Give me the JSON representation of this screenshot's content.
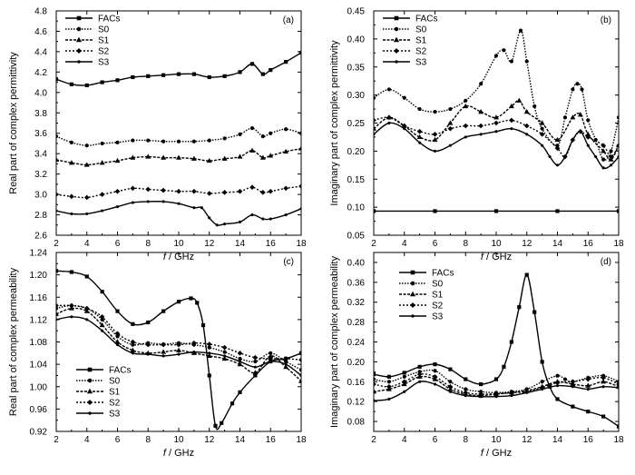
{
  "chart_data": [
    {
      "type": "line",
      "panel": "(a)",
      "xlabel_italic": "f",
      "xlabel_rest": " / GHz",
      "ylabel": "Real part of complex permittivity",
      "xlim": [
        2,
        18
      ],
      "ylim": [
        2.6,
        4.8
      ],
      "xticks": [
        2,
        4,
        6,
        8,
        10,
        12,
        14,
        16,
        18
      ],
      "yticks": [
        "2.6",
        "2.8",
        "3.0",
        "3.2",
        "3.4",
        "3.6",
        "3.8",
        "4.0",
        "4.2",
        "4.4",
        "4.6",
        "4.8"
      ],
      "legend": [
        "FACs",
        "S0",
        "S1",
        "S2",
        "S3"
      ],
      "legend_position": "top-left",
      "series": [
        {
          "name": "FACs",
          "x": [
            2,
            3,
            4,
            5,
            6,
            7,
            8,
            9,
            10,
            11,
            12,
            13,
            14,
            14.8,
            15.5,
            16,
            17,
            18
          ],
          "y": [
            4.13,
            4.08,
            4.07,
            4.1,
            4.12,
            4.15,
            4.16,
            4.17,
            4.18,
            4.18,
            4.15,
            4.16,
            4.2,
            4.28,
            4.18,
            4.22,
            4.3,
            4.39
          ]
        },
        {
          "name": "S0",
          "x": [
            2,
            3,
            4,
            5,
            6,
            7,
            8,
            9,
            10,
            11,
            12,
            13,
            14,
            14.8,
            15.5,
            16,
            17,
            18
          ],
          "y": [
            3.57,
            3.51,
            3.48,
            3.5,
            3.51,
            3.53,
            3.53,
            3.52,
            3.52,
            3.52,
            3.53,
            3.55,
            3.59,
            3.65,
            3.57,
            3.6,
            3.64,
            3.6
          ]
        },
        {
          "name": "S1",
          "x": [
            2,
            3,
            4,
            5,
            6,
            7,
            8,
            9,
            10,
            11,
            12,
            13,
            14,
            14.8,
            15.5,
            16,
            17,
            18
          ],
          "y": [
            3.34,
            3.31,
            3.29,
            3.31,
            3.33,
            3.36,
            3.37,
            3.36,
            3.36,
            3.35,
            3.33,
            3.35,
            3.37,
            3.43,
            3.36,
            3.38,
            3.42,
            3.45
          ]
        },
        {
          "name": "S2",
          "x": [
            2,
            3,
            4,
            5,
            6,
            7,
            8,
            9,
            10,
            11,
            12,
            13,
            14,
            14.8,
            15.5,
            16,
            17,
            18
          ],
          "y": [
            3.0,
            2.98,
            2.97,
            3.0,
            3.03,
            3.06,
            3.05,
            3.04,
            3.03,
            3.03,
            3.01,
            3.02,
            3.03,
            3.07,
            3.02,
            3.03,
            3.06,
            3.08
          ]
        },
        {
          "name": "S3",
          "x": [
            2,
            3,
            4,
            5,
            6,
            7,
            8,
            9,
            10,
            11,
            11.5,
            12,
            12.5,
            13,
            14,
            14.8,
            15.5,
            16,
            17,
            18
          ],
          "y": [
            2.84,
            2.81,
            2.81,
            2.84,
            2.88,
            2.92,
            2.93,
            2.93,
            2.91,
            2.87,
            2.87,
            2.77,
            2.7,
            2.71,
            2.73,
            2.8,
            2.76,
            2.76,
            2.8,
            2.86
          ]
        }
      ]
    },
    {
      "type": "line",
      "panel": "(b)",
      "xlabel_italic": "f",
      "xlabel_rest": " / GHz",
      "ylabel": "Imaginary part of complex permittivity",
      "xlim": [
        2,
        18
      ],
      "ylim": [
        0.05,
        0.45
      ],
      "xticks": [
        2,
        4,
        6,
        8,
        10,
        12,
        14,
        16,
        18
      ],
      "yticks": [
        "0.05",
        "0.10",
        "0.15",
        "0.20",
        "0.25",
        "0.30",
        "0.35",
        "0.40",
        "0.45"
      ],
      "legend": [
        "FACs",
        "S0",
        "S1",
        "S2",
        "S3"
      ],
      "legend_position": "top-left",
      "series": [
        {
          "name": "FACs",
          "x": [
            2,
            6,
            10,
            14,
            18
          ],
          "y": [
            0.093,
            0.093,
            0.093,
            0.093,
            0.093
          ]
        },
        {
          "name": "S0",
          "x": [
            2,
            3,
            4,
            5,
            6,
            7,
            8,
            9,
            10,
            10.5,
            11,
            11.6,
            12,
            12.5,
            13,
            14,
            14.5,
            15,
            15.3,
            15.6,
            16,
            16.5,
            17,
            17.5,
            18
          ],
          "y": [
            0.295,
            0.31,
            0.295,
            0.275,
            0.27,
            0.275,
            0.29,
            0.32,
            0.37,
            0.38,
            0.36,
            0.415,
            0.36,
            0.28,
            0.24,
            0.21,
            0.26,
            0.31,
            0.32,
            0.31,
            0.255,
            0.22,
            0.185,
            0.2,
            0.26
          ]
        },
        {
          "name": "S1",
          "x": [
            2,
            3,
            4,
            5,
            6,
            7,
            8,
            9,
            10,
            11,
            11.5,
            12,
            13,
            14,
            15,
            15.5,
            16,
            17,
            17.5,
            18
          ],
          "y": [
            0.24,
            0.26,
            0.245,
            0.225,
            0.22,
            0.25,
            0.28,
            0.27,
            0.26,
            0.28,
            0.29,
            0.27,
            0.25,
            0.22,
            0.26,
            0.265,
            0.23,
            0.2,
            0.185,
            0.21
          ]
        },
        {
          "name": "S2",
          "x": [
            2,
            3,
            4,
            5,
            6,
            7,
            8,
            9,
            10,
            11,
            12,
            13,
            14,
            14.5,
            15,
            15.5,
            16,
            17,
            17.5,
            18
          ],
          "y": [
            0.255,
            0.26,
            0.245,
            0.235,
            0.23,
            0.24,
            0.245,
            0.245,
            0.25,
            0.255,
            0.245,
            0.23,
            0.205,
            0.19,
            0.22,
            0.235,
            0.225,
            0.21,
            0.19,
            0.21
          ]
        },
        {
          "name": "S3",
          "x": [
            2,
            3,
            4,
            5,
            6,
            7,
            8,
            9,
            10,
            11,
            12,
            13,
            13.5,
            14,
            14.5,
            15,
            15.5,
            16,
            16.5,
            17,
            17.5,
            18
          ],
          "y": [
            0.23,
            0.25,
            0.24,
            0.215,
            0.2,
            0.21,
            0.225,
            0.23,
            0.235,
            0.24,
            0.23,
            0.21,
            0.19,
            0.175,
            0.19,
            0.22,
            0.235,
            0.21,
            0.19,
            0.17,
            0.175,
            0.19
          ]
        }
      ]
    },
    {
      "type": "line",
      "panel": "(c)",
      "xlabel_italic": "f",
      "xlabel_rest": " / GHz",
      "ylabel": "Real part of complex permeability",
      "xlim": [
        2,
        18
      ],
      "ylim": [
        0.92,
        1.24
      ],
      "xticks": [
        2,
        4,
        6,
        8,
        10,
        12,
        14,
        16,
        18
      ],
      "yticks": [
        "0.92",
        "0.96",
        "1.00",
        "1.04",
        "1.08",
        "1.12",
        "1.16",
        "1.20",
        "1.24"
      ],
      "legend": [
        "FACs",
        "S0",
        "S1",
        "S2",
        "S3"
      ],
      "legend_position": "bottom-left",
      "series": [
        {
          "name": "FACs",
          "x": [
            2,
            3,
            4,
            5,
            6,
            7,
            8,
            9,
            10,
            10.8,
            11.2,
            11.6,
            12,
            12.4,
            12.8,
            13.5,
            14,
            15,
            16,
            17,
            18
          ],
          "y": [
            1.207,
            1.205,
            1.197,
            1.17,
            1.135,
            1.112,
            1.115,
            1.135,
            1.152,
            1.158,
            1.15,
            1.11,
            1.02,
            0.93,
            0.935,
            0.97,
            0.99,
            1.02,
            1.045,
            1.05,
            1.06
          ]
        },
        {
          "name": "S0",
          "x": [
            2,
            3,
            4,
            5,
            6,
            7,
            8,
            9,
            10,
            11,
            12,
            13,
            14,
            15,
            16,
            17,
            18
          ],
          "y": [
            1.14,
            1.145,
            1.14,
            1.12,
            1.09,
            1.075,
            1.078,
            1.076,
            1.078,
            1.075,
            1.07,
            1.062,
            1.05,
            1.045,
            1.06,
            1.045,
            1.03
          ]
        },
        {
          "name": "S1",
          "x": [
            2,
            3,
            4,
            5,
            6,
            7,
            8,
            9,
            10,
            11,
            12,
            13,
            14,
            15,
            16,
            17,
            18
          ],
          "y": [
            1.13,
            1.14,
            1.135,
            1.11,
            1.08,
            1.065,
            1.06,
            1.062,
            1.065,
            1.06,
            1.055,
            1.05,
            1.04,
            1.025,
            1.055,
            1.035,
            1.01
          ]
        },
        {
          "name": "S2",
          "x": [
            2,
            3,
            4,
            5,
            6,
            7,
            8,
            9,
            10,
            11,
            12,
            13,
            14,
            15,
            16,
            17,
            18
          ],
          "y": [
            1.145,
            1.145,
            1.14,
            1.125,
            1.095,
            1.08,
            1.075,
            1.075,
            1.075,
            1.078,
            1.076,
            1.07,
            1.06,
            1.052,
            1.05,
            1.05,
            1.048
          ]
        },
        {
          "name": "S3",
          "x": [
            2,
            3,
            4,
            5,
            6,
            7,
            8,
            9,
            10,
            11,
            12,
            13,
            14,
            15,
            16,
            17,
            18
          ],
          "y": [
            1.12,
            1.125,
            1.12,
            1.1,
            1.075,
            1.06,
            1.058,
            1.055,
            1.058,
            1.062,
            1.06,
            1.055,
            1.045,
            1.035,
            1.045,
            1.04,
            1.02
          ]
        }
      ]
    },
    {
      "type": "line",
      "panel": "(d)",
      "xlabel_italic": "f",
      "xlabel_rest": " / GHz",
      "ylabel": "Imaginary part of complex permeability",
      "xlim": [
        2,
        18
      ],
      "ylim": [
        0.06,
        0.42
      ],
      "xticks": [
        2,
        4,
        6,
        8,
        10,
        12,
        14,
        16,
        18
      ],
      "yticks": [
        "0.08",
        "0.12",
        "0.16",
        "0.20",
        "0.24",
        "0.28",
        "0.32",
        "0.36",
        "0.40"
      ],
      "legend": [
        "FACs",
        "S0",
        "S1",
        "S2",
        "S3"
      ],
      "legend_position": "top-left",
      "series": [
        {
          "name": "FACs",
          "x": [
            2,
            3,
            4,
            5,
            6,
            7,
            8,
            9,
            10,
            10.5,
            11,
            11.5,
            12,
            12.5,
            13,
            13.5,
            14,
            15,
            16,
            17,
            18
          ],
          "y": [
            0.175,
            0.17,
            0.178,
            0.19,
            0.195,
            0.185,
            0.165,
            0.155,
            0.165,
            0.19,
            0.24,
            0.31,
            0.375,
            0.3,
            0.2,
            0.15,
            0.125,
            0.11,
            0.1,
            0.09,
            0.07
          ]
        },
        {
          "name": "S0",
          "x": [
            2,
            3,
            4,
            5,
            6,
            7,
            8,
            9,
            10,
            11,
            12,
            13,
            14,
            14.5,
            15,
            16,
            17,
            18
          ],
          "y": [
            0.165,
            0.16,
            0.17,
            0.18,
            0.182,
            0.16,
            0.145,
            0.14,
            0.138,
            0.14,
            0.145,
            0.16,
            0.172,
            0.165,
            0.16,
            0.168,
            0.172,
            0.16
          ]
        },
        {
          "name": "S1",
          "x": [
            2,
            3,
            4,
            5,
            6,
            7,
            8,
            9,
            10,
            11,
            12,
            13,
            14,
            15,
            16,
            17,
            18
          ],
          "y": [
            0.14,
            0.145,
            0.155,
            0.17,
            0.165,
            0.145,
            0.135,
            0.132,
            0.135,
            0.138,
            0.142,
            0.15,
            0.16,
            0.155,
            0.152,
            0.16,
            0.15
          ]
        },
        {
          "name": "S2",
          "x": [
            2,
            3,
            4,
            5,
            6,
            7,
            8,
            9,
            10,
            11,
            12,
            13,
            14,
            15,
            16,
            17,
            18
          ],
          "y": [
            0.155,
            0.15,
            0.16,
            0.175,
            0.17,
            0.15,
            0.138,
            0.135,
            0.136,
            0.138,
            0.14,
            0.148,
            0.158,
            0.16,
            0.165,
            0.168,
            0.155
          ]
        },
        {
          "name": "S3",
          "x": [
            2,
            3,
            4,
            5,
            6,
            7,
            8,
            9,
            10,
            11,
            12,
            13,
            14,
            15,
            16,
            17,
            18
          ],
          "y": [
            0.122,
            0.125,
            0.14,
            0.16,
            0.155,
            0.14,
            0.132,
            0.13,
            0.13,
            0.132,
            0.138,
            0.145,
            0.152,
            0.15,
            0.145,
            0.15,
            0.148
          ]
        }
      ]
    }
  ]
}
